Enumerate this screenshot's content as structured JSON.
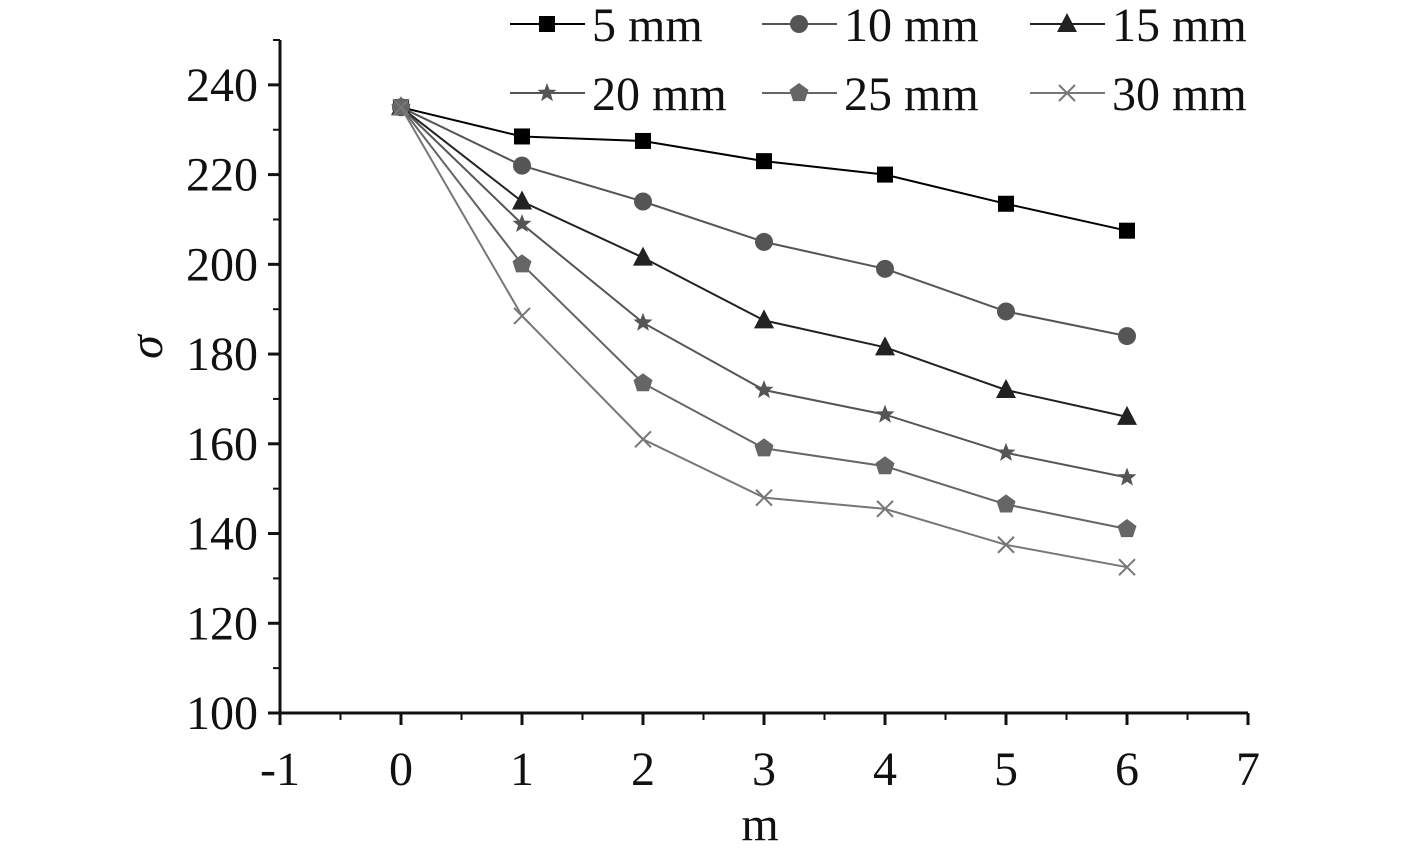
{
  "chart_data": {
    "type": "line",
    "title": "",
    "xlabel": "m",
    "ylabel": "σ",
    "xlim": [
      -1,
      7
    ],
    "ylim": [
      100,
      250
    ],
    "x_ticks": [
      -1,
      0,
      1,
      2,
      3,
      4,
      5,
      6,
      7
    ],
    "x_tick_labels": [
      "-1",
      "0",
      "1",
      "2",
      "3",
      "4",
      "5",
      "6",
      "7"
    ],
    "y_ticks": [
      100,
      120,
      140,
      160,
      180,
      200,
      220,
      240
    ],
    "y_tick_labels": [
      "100",
      "120",
      "140",
      "160",
      "180",
      "200",
      "220",
      "240"
    ],
    "grid": false,
    "legend_position": "top",
    "legend_columns": 3,
    "x": [
      0,
      1,
      2,
      3,
      4,
      5,
      6
    ],
    "series": [
      {
        "name": "5 mm",
        "marker": "square",
        "color": "#000000",
        "values": [
          235,
          228.5,
          227.5,
          223,
          220,
          213.5,
          207.5
        ]
      },
      {
        "name": "10 mm",
        "marker": "circle",
        "color": "#555555",
        "values": [
          235,
          222,
          214,
          205,
          199,
          189.5,
          184
        ]
      },
      {
        "name": "15 mm",
        "marker": "triangle",
        "color": "#222222",
        "values": [
          235,
          214,
          201.5,
          187.5,
          181.5,
          172,
          166
        ]
      },
      {
        "name": "20 mm",
        "marker": "star",
        "color": "#555555",
        "values": [
          235,
          209,
          187,
          172,
          166.5,
          158,
          152.5
        ]
      },
      {
        "name": "25 mm",
        "marker": "pentagon",
        "color": "#666666",
        "values": [
          235,
          200,
          173.5,
          159,
          155,
          146.5,
          141
        ]
      },
      {
        "name": "30 mm",
        "marker": "x",
        "color": "#777777",
        "values": [
          235,
          188.5,
          161,
          148,
          145.5,
          137.5,
          132.5
        ]
      }
    ]
  }
}
